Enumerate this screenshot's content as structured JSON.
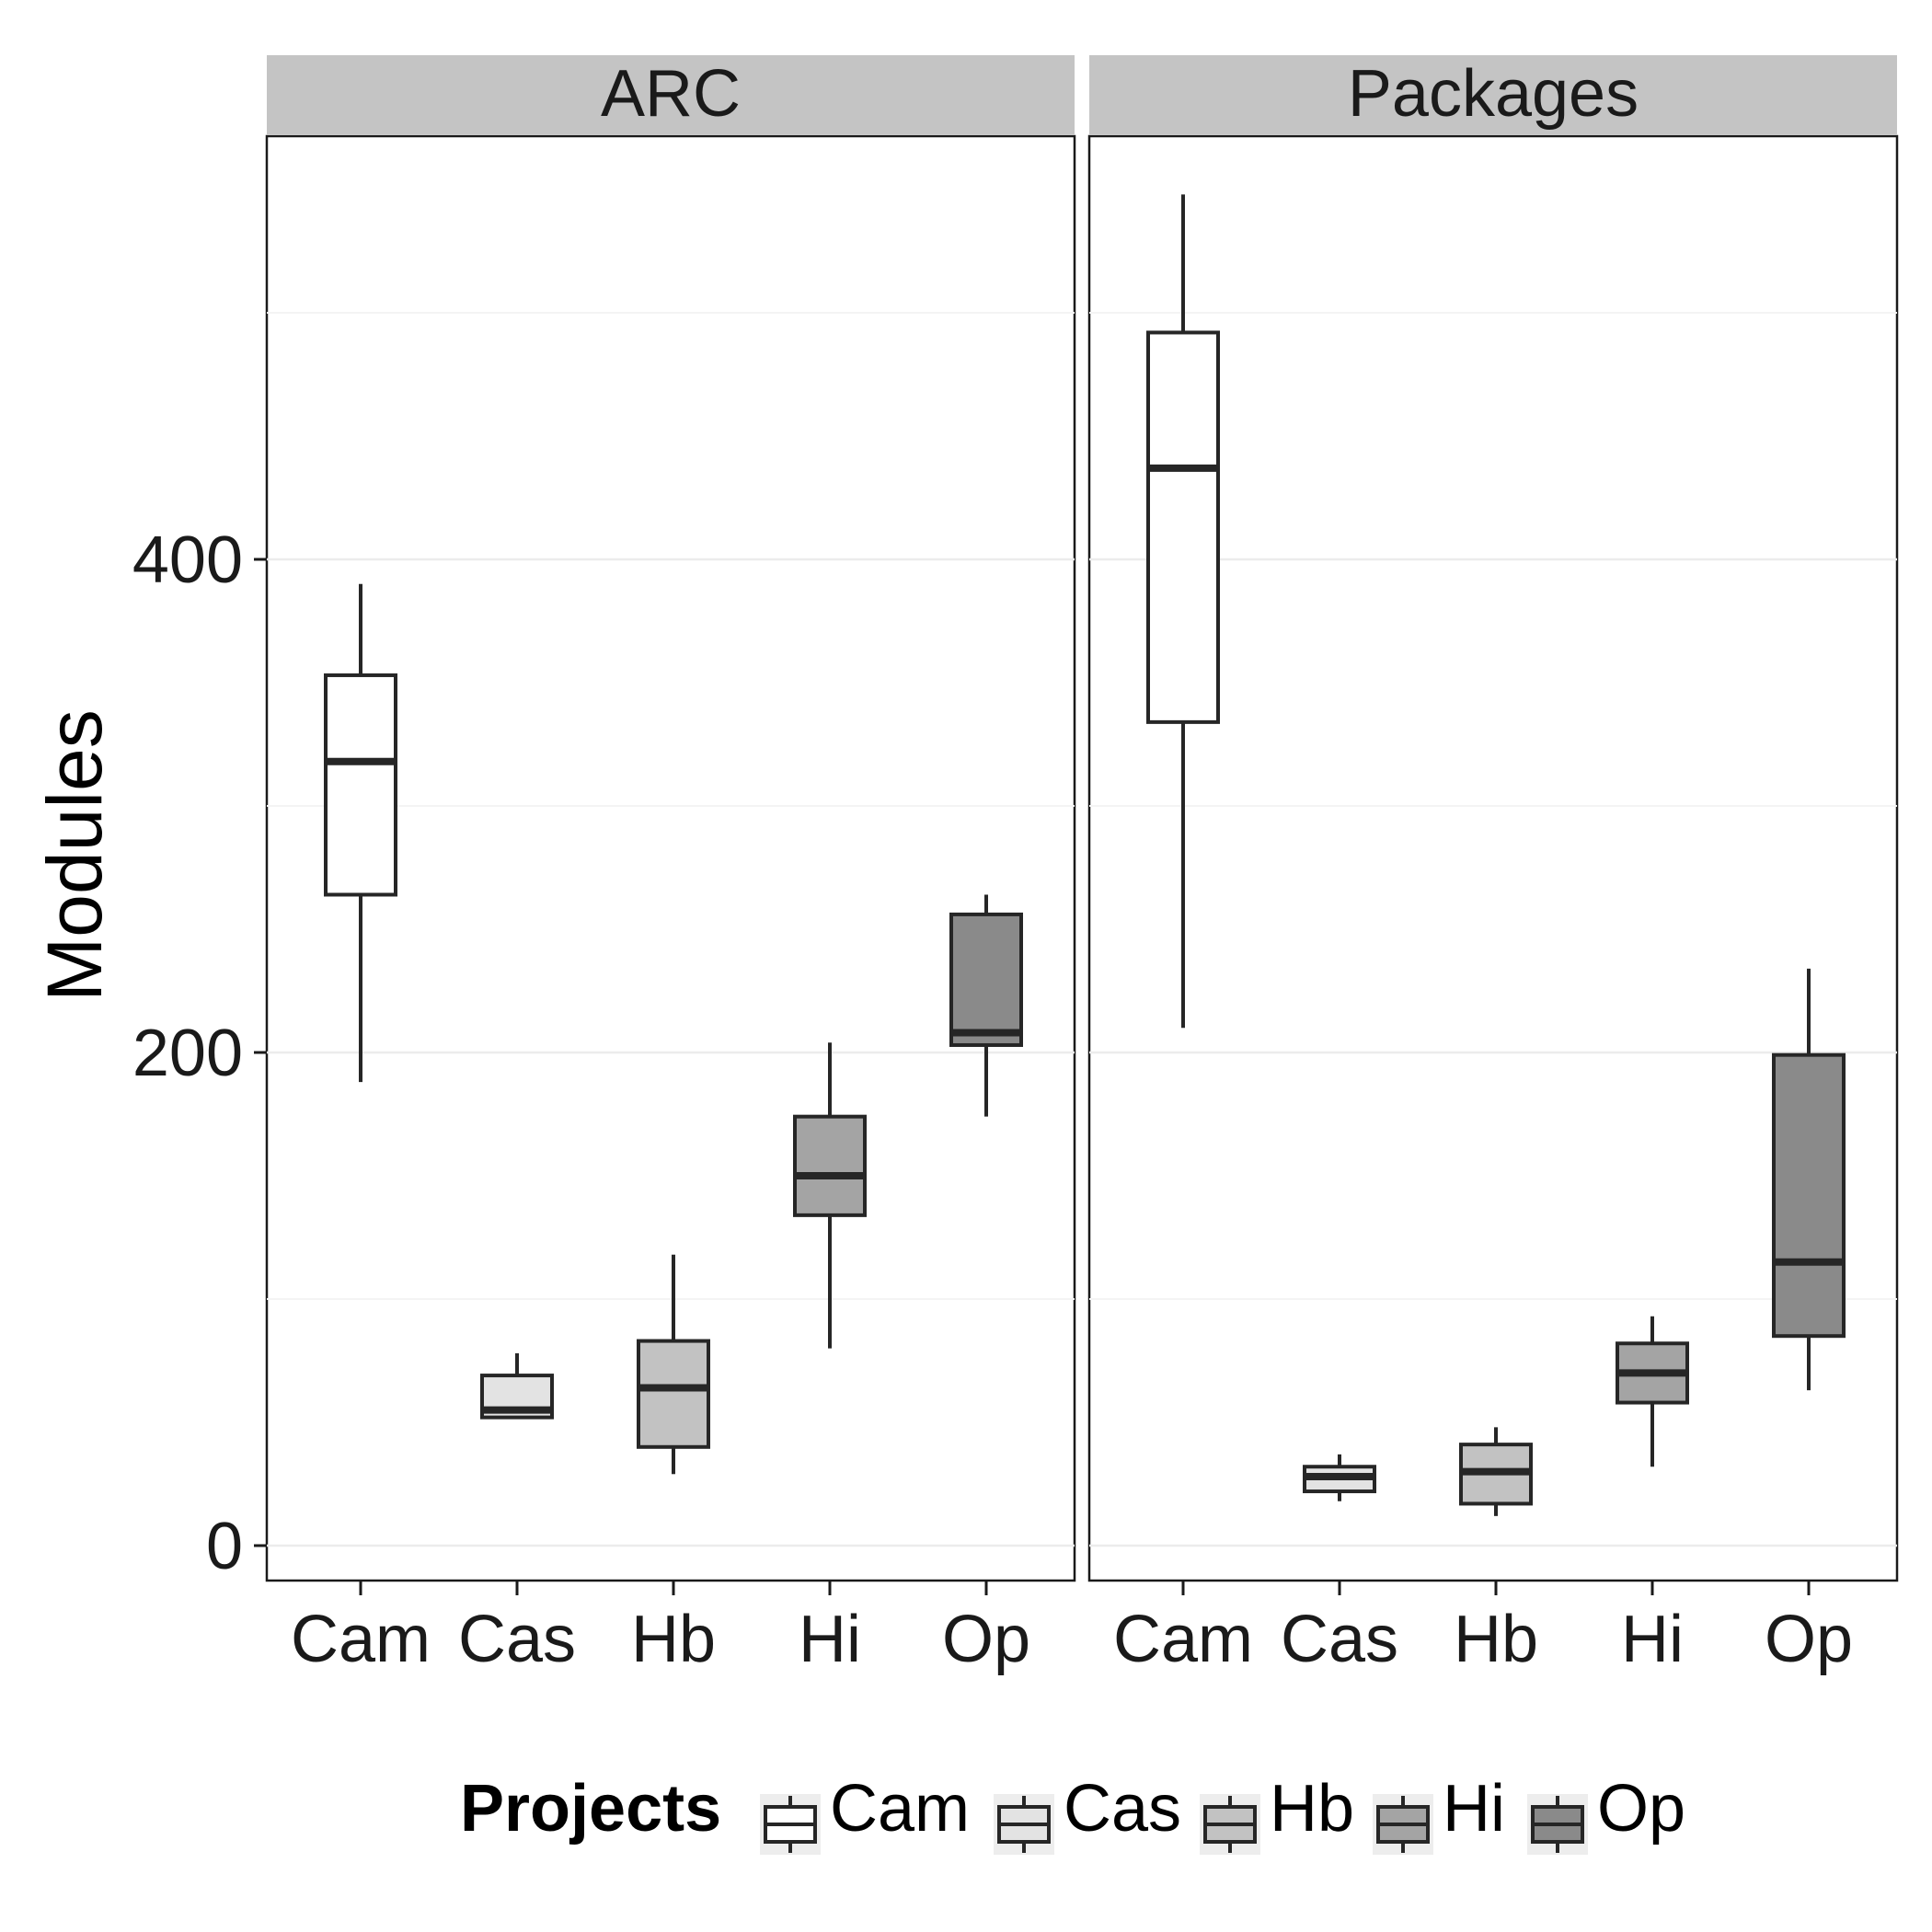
{
  "chart_data": {
    "type": "boxplot",
    "ylabel": "Modules",
    "y_ticks": [
      0,
      200,
      400
    ],
    "ylim": [
      -28,
      560
    ],
    "grid": true,
    "legend": {
      "title": "Projects",
      "position": "bottom",
      "entries": [
        {
          "label": "Cam",
          "color": "#ffffff"
        },
        {
          "label": "Cas",
          "color": "#e3e3e3"
        },
        {
          "label": "Hb",
          "color": "#c2c2c2"
        },
        {
          "label": "Hi",
          "color": "#a4a4a4"
        },
        {
          "label": "Op",
          "color": "#8a8a8a"
        }
      ]
    },
    "categories": [
      "Cam",
      "Cas",
      "Hb",
      "Hi",
      "Op"
    ],
    "panels": [
      {
        "title": "ARC",
        "boxes": [
          {
            "category": "Cam",
            "lower": 188,
            "q1": 264,
            "median": 318,
            "q3": 353,
            "upper": 390
          },
          {
            "category": "Cas",
            "lower": 52,
            "q1": 52,
            "median": 55,
            "q3": 69,
            "upper": 78
          },
          {
            "category": "Hb",
            "lower": 29,
            "q1": 40,
            "median": 64,
            "q3": 83,
            "upper": 118
          },
          {
            "category": "Hi",
            "lower": 80,
            "q1": 134,
            "median": 150,
            "q3": 174,
            "upper": 204
          },
          {
            "category": "Op",
            "lower": 174,
            "q1": 203,
            "median": 208,
            "q3": 256,
            "upper": 264
          }
        ]
      },
      {
        "title": "Packages",
        "boxes": [
          {
            "category": "Cam",
            "lower": 210,
            "q1": 334,
            "median": 437,
            "q3": 492,
            "upper": 548
          },
          {
            "category": "Cas",
            "lower": 18,
            "q1": 22,
            "median": 28,
            "q3": 32,
            "upper": 37
          },
          {
            "category": "Hb",
            "lower": 12,
            "q1": 17,
            "median": 30,
            "q3": 41,
            "upper": 48
          },
          {
            "category": "Hi",
            "lower": 32,
            "q1": 58,
            "median": 70,
            "q3": 82,
            "upper": 93
          },
          {
            "category": "Op",
            "lower": 63,
            "q1": 85,
            "median": 115,
            "q3": 199,
            "upper": 234
          }
        ]
      }
    ]
  }
}
